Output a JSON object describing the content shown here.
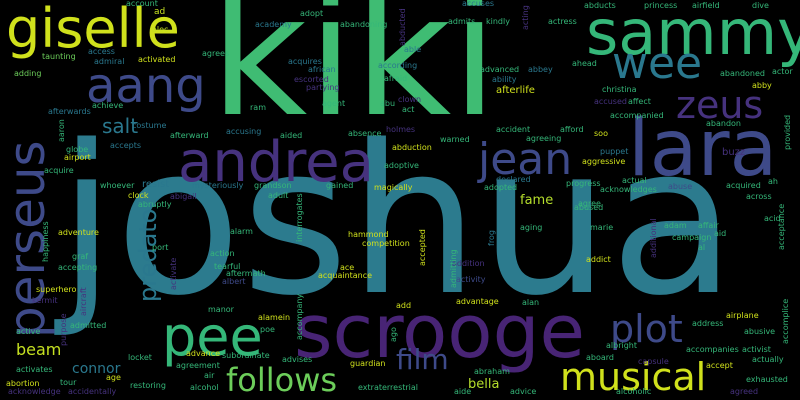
{
  "words": {
    "joshua": "joshua",
    "kiki": "kiki",
    "scrooge": "scrooge",
    "lara": "lara",
    "andrea": "andrea",
    "sammy": "sammy",
    "giselle": "giselle",
    "perseus": "perseus",
    "jean": "jean",
    "aang": "aang",
    "wee": "wee",
    "zeus": "zeus",
    "pee": "pee",
    "plot": "plot",
    "musical": "musical",
    "follows": "follows",
    "film": "film",
    "predator": "predator",
    "salt": "salt",
    "beam": "beam",
    "connor": "connor",
    "fame": "fame",
    "bella": "bella",
    "afterlife": "afterlife",
    "buzz": "buzz",
    "account": "account",
    "ad": "ad",
    "alec": "alec",
    "access": "access",
    "admiral": "admiral",
    "activated": "activated",
    "agrees": "agrees",
    "taunting": "taunting",
    "adding": "adding",
    "academy": "academy",
    "adopt": "adopt",
    "abducted": "abducted",
    "accuses": "accuses",
    "acting": "acting",
    "abducts": "abducts",
    "princess": "princess",
    "airfield": "airfield",
    "dive": "dive",
    "abandoning": "abandoning",
    "admits": "admits",
    "kindly": "kindly",
    "actress": "actress",
    "able": "able",
    "actor": "actor",
    "ahead": "ahead",
    "acquires": "acquires",
    "african": "african",
    "according": "according",
    "abbey": "abbey",
    "ability": "ability",
    "advanced": "advanced",
    "abandoned": "abandoned",
    "christina": "christina",
    "abby": "abby",
    "afraid": "afraid",
    "partying": "partying",
    "escorted": "escorted",
    "clown": "clown",
    "agent": "agent",
    "abu": "abu",
    "act": "act",
    "accused": "accused",
    "affect": "affect",
    "achieve": "achieve",
    "afterwards": "afterwards",
    "ram": "ram",
    "aaron": "aaron",
    "costume": "costume",
    "holmes": "holmes",
    "accident": "accident",
    "afford": "afford",
    "soo": "soo",
    "accompanied": "accompanied",
    "abandon": "abandon",
    "provided": "provided",
    "globe": "globe",
    "accepts": "accepts",
    "afterward": "afterward",
    "accusing": "accusing",
    "aided": "aided",
    "absence": "absence",
    "warned": "warned",
    "agreeing": "agreeing",
    "airport": "airport",
    "abduction": "abduction",
    "puppet": "puppet",
    "aggressive": "aggressive",
    "acquire": "acquire",
    "adoptive": "adoptive",
    "declared": "declared",
    "whoever": "whoever",
    "resist": "resist",
    "mysteriously": "mysteriously",
    "grandson": "grandson",
    "gained": "gained",
    "magically": "magically",
    "adopted": "adopted",
    "progress": "progress",
    "actual": "actual",
    "acknowledges": "acknowledges",
    "abuse": "abuse",
    "acquired": "acquired",
    "ah": "ah",
    "abigail": "abigail",
    "clock": "clock",
    "abruptly": "abruptly",
    "adult": "adult",
    "interrogates": "interrogates",
    "abused": "abused",
    "agree": "agree",
    "across": "across",
    "adventure": "adventure",
    "hammond": "hammond",
    "aging": "aging",
    "marie": "marie",
    "additional": "additional",
    "adam": "adam",
    "affair": "affair",
    "aid": "aid",
    "al": "al",
    "campaign": "campaign",
    "acid": "acid",
    "happiness": "happiness",
    "alarm": "alarm",
    "competition": "competition",
    "frog": "frog",
    "addict": "addict",
    "port": "port",
    "graf": "graf",
    "action": "action",
    "accepting": "accepting",
    "tearful": "tearful",
    "aftermath": "aftermath",
    "albert": "albert",
    "ace": "ace",
    "acquaintance": "acquaintance",
    "accepted": "accepted",
    "addition": "addition",
    "activity": "activity",
    "activate": "activate",
    "superhero": "superhero",
    "aircraft": "aircraft",
    "advantage": "advantage",
    "alan": "alan",
    "kermit": "kermit",
    "active": "active",
    "purpose": "purpose",
    "manor": "manor",
    "accompany": "accompany",
    "add": "add",
    "airplane": "airplane",
    "admitted": "admitted",
    "alamein": "alamein",
    "poe": "poe",
    "ago": "ago",
    "address": "address",
    "accomplice": "accomplice",
    "abusive": "abusive",
    "albright": "albright",
    "locket": "locket",
    "advance": "advance",
    "subordinate": "subordinate",
    "advises": "advises",
    "guardian": "guardian",
    "aboard": "aboard",
    "accompanies": "accompanies",
    "activist": "activist",
    "actually": "actually",
    "abortion": "abortion",
    "activates": "activates",
    "age": "age",
    "tour": "tour",
    "restoring": "restoring",
    "agreement": "agreement",
    "abraham": "abraham",
    "capsule": "capsule",
    "accept": "accept",
    "exhausted": "exhausted",
    "acknowledge": "acknowledge",
    "accidentally": "accidentally",
    "alcohol": "alcohol",
    "air": "air",
    "extraterrestrial": "extraterrestrial",
    "aide": "aide",
    "advice": "advice",
    "alcoholic": "alcoholic",
    "agreed": "agreed",
    "admitting": "admitting",
    "acceptance": "acceptance"
  },
  "colors": {
    "teal": "#2a788e",
    "green": "#35b779",
    "purple": "#46327e",
    "indigo": "#3e4a89",
    "yellow": "#d0e11c",
    "dark": "#440154"
  }
}
